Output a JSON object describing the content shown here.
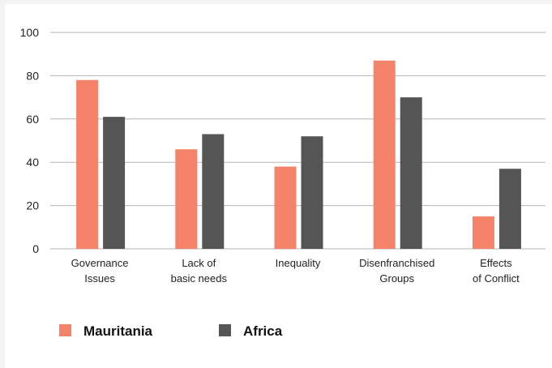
{
  "chart_data": {
    "type": "bar",
    "title": "",
    "xlabel": "",
    "ylabel": "",
    "ylim": [
      0,
      100
    ],
    "yticks": [
      0,
      20,
      40,
      60,
      80,
      100
    ],
    "grid": true,
    "legend_position": "bottom-left",
    "categories": [
      [
        "Governance",
        "Issues"
      ],
      [
        "Lack of",
        "basic needs"
      ],
      [
        "Inequality"
      ],
      [
        "Disenfranchised",
        "Groups"
      ],
      [
        "Effects",
        "of Conflict"
      ]
    ],
    "series": [
      {
        "name": "Mauritania",
        "color": "#f4836a",
        "values": [
          78,
          46,
          38,
          87,
          15
        ]
      },
      {
        "name": "Africa",
        "color": "#555555",
        "values": [
          61,
          53,
          52,
          70,
          37
        ]
      }
    ]
  }
}
